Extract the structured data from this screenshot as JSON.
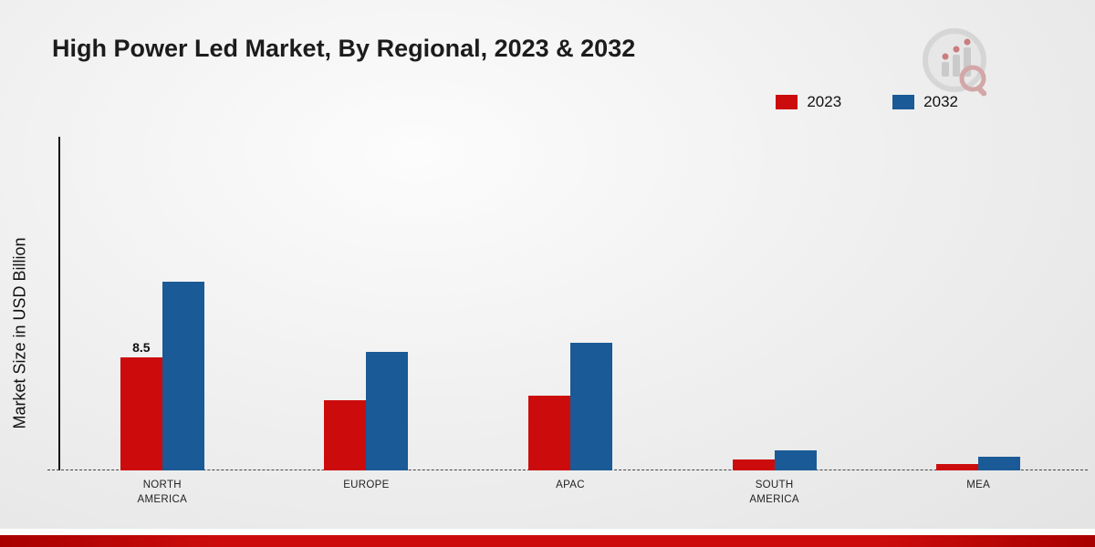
{
  "title": "High Power Led Market, By Regional, 2023 & 2032",
  "y_axis_label": "Market Size in USD Billion",
  "legend": {
    "items": [
      {
        "label": "2023",
        "color": "#cc0c0c"
      },
      {
        "label": "2032",
        "color": "#1a5a96"
      }
    ],
    "position": "top-right"
  },
  "chart_data": {
    "type": "bar",
    "title": "High Power Led Market, By Regional, 2023 & 2032",
    "xlabel": "",
    "ylabel": "Market Size in USD Billion",
    "categories": [
      "NORTH AMERICA",
      "EUROPE",
      "APAC",
      "SOUTH AMERICA",
      "MEA"
    ],
    "series": [
      {
        "name": "2023",
        "color": "#cc0c0c",
        "values": [
          8.5,
          5.3,
          5.6,
          0.8,
          0.5
        ],
        "labels": [
          "8.5",
          null,
          null,
          null,
          null
        ]
      },
      {
        "name": "2032",
        "color": "#1a5a96",
        "values": [
          14.2,
          8.9,
          9.6,
          1.5,
          1.0
        ],
        "labels": [
          null,
          null,
          null,
          null,
          null
        ]
      }
    ],
    "ylim": [
      0,
      16
    ],
    "grid": false,
    "baseline_style": "dashed",
    "legend_position": "top-right"
  },
  "colors": {
    "series_2023": "#cc0c0c",
    "series_2032": "#1a5a96",
    "footer_bar": "#cc0c0c",
    "background": "#ececec"
  },
  "logo": {
    "name": "brand-watermark"
  }
}
